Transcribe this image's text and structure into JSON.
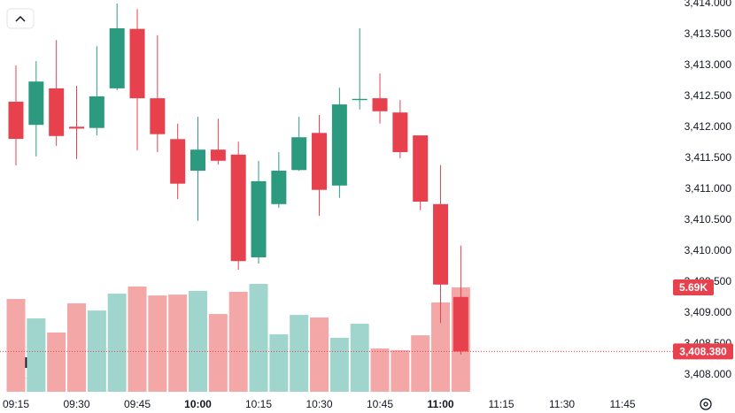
{
  "chart_data": {
    "type": "candlestick",
    "x": [
      "09:15",
      "09:20",
      "09:25",
      "09:30",
      "09:35",
      "09:40",
      "09:45",
      "09:50",
      "09:55",
      "10:00",
      "10:05",
      "10:10",
      "10:15",
      "10:20",
      "10:25",
      "10:30",
      "10:35",
      "10:40",
      "10:45",
      "10:50",
      "10:55",
      "11:00",
      "11:05"
    ],
    "open": [
      3412.414,
      3412.04,
      3412.63,
      3412.01,
      3411.99,
      3412.63,
      3413.59,
      3412.47,
      3411.81,
      3411.3,
      3411.64,
      3411.56,
      3409.9,
      3410.76,
      3411.31,
      3411.91,
      3411.06,
      3412.44,
      3412.47,
      3412.24,
      3411.87,
      3410.76,
      3409.26
    ],
    "high": [
      3413.0,
      3413.07,
      3413.41,
      3412.67,
      3413.31,
      3414.0,
      3413.91,
      3413.49,
      3412.06,
      3412.17,
      3412.14,
      3411.77,
      3411.46,
      3411.6,
      3412.17,
      3412.2,
      3412.64,
      3413.6,
      3412.87,
      3412.44,
      3411.87,
      3411.39,
      3410.09
    ],
    "low": [
      3411.386,
      3411.53,
      3411.7,
      3411.49,
      3411.87,
      3412.6,
      3411.63,
      3411.6,
      3410.84,
      3410.49,
      3411.4,
      3409.7,
      3409.8,
      3410.7,
      3411.3,
      3410.57,
      3410.86,
      3412.29,
      3412.06,
      3411.5,
      3410.66,
      3408.84,
      3408.33
    ],
    "close": [
      3411.814,
      3412.74,
      3411.86,
      3411.98,
      3412.5,
      3413.6,
      3412.47,
      3411.89,
      3411.09,
      3411.64,
      3411.46,
      3409.84,
      3411.13,
      3411.3,
      3411.84,
      3410.99,
      3412.37,
      3412.46,
      3412.26,
      3411.6,
      3410.8,
      3409.46,
      3408.38
    ],
    "volume": [
      5060,
      4000,
      3230,
      4820,
      4430,
      5350,
      5740,
      5250,
      5300,
      5500,
      4240,
      5450,
      5880,
      3130,
      4190,
      4050,
      2940,
      3710,
      2360,
      2270,
      3080,
      4870,
      5690
    ],
    "volume_last_label": "5.69K",
    "volume_ylim": [
      0,
      21360
    ],
    "last_price": {
      "value": 3408.38,
      "label": "3,408.380"
    },
    "up_color": "#2b9a7f",
    "down_color": "#e8414e",
    "volume_up_color": "#9fd5cd",
    "volume_down_color": "#f4a7a7",
    "ylim": [
      3408.0,
      3414.0
    ],
    "yticks": [
      {
        "value": 3408.0,
        "label": "3,408.000"
      },
      {
        "value": 3408.5,
        "label": "3,408.500"
      },
      {
        "value": 3409.0,
        "label": "3,409.000"
      },
      {
        "value": 3409.5,
        "label": "3,409.500"
      },
      {
        "value": 3410.0,
        "label": "3,410.000"
      },
      {
        "value": 3410.5,
        "label": "3,410.500"
      },
      {
        "value": 3411.0,
        "label": "3,411.000"
      },
      {
        "value": 3411.5,
        "label": "3,411.500"
      },
      {
        "value": 3412.0,
        "label": "3,412.000"
      },
      {
        "value": 3412.5,
        "label": "3,412.500"
      },
      {
        "value": 3413.0,
        "label": "3,413.000"
      },
      {
        "value": 3413.5,
        "label": "3,413.500"
      },
      {
        "value": 3414.0,
        "label": "3,414.000"
      }
    ],
    "xticks": [
      "09:15",
      "09:30",
      "09:45",
      "10:00",
      "10:15",
      "10:30",
      "10:45",
      "11:00",
      "11:15",
      "11:30",
      "11:45"
    ]
  }
}
